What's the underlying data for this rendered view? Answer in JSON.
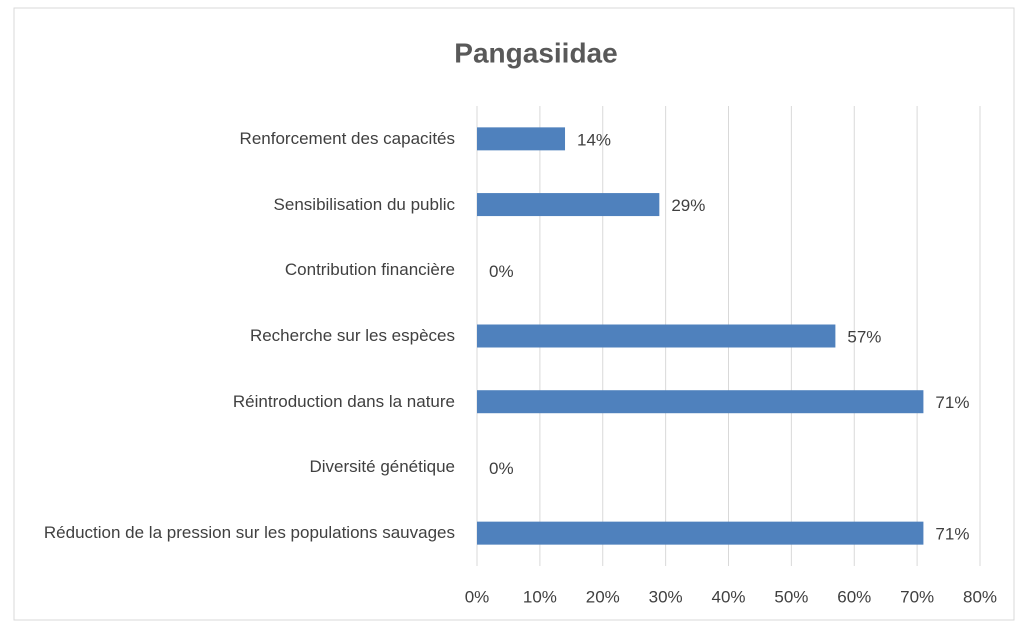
{
  "chart_data": {
    "type": "hbar",
    "title": "Pangasiidae",
    "categories": [
      "Renforcement des capacités",
      "Sensibilisation du public",
      "Contribution financière",
      "Recherche sur les espèces",
      "Réintroduction dans la nature",
      "Diversité génétique",
      "Réduction de la pression sur les populations sauvages"
    ],
    "values": [
      14,
      29,
      0,
      57,
      71,
      0,
      71
    ],
    "value_labels": [
      "14%",
      "29%",
      "0%",
      "57%",
      "71%",
      "0%",
      "71%"
    ],
    "color": "#4f81bd",
    "xlim": [
      0,
      80
    ],
    "xticks": [
      {
        "value": 0,
        "label": "0%"
      },
      {
        "value": 10,
        "label": "10%"
      },
      {
        "value": 20,
        "label": "20%"
      },
      {
        "value": 30,
        "label": "30%"
      },
      {
        "value": 40,
        "label": "40%"
      },
      {
        "value": 50,
        "label": "50%"
      },
      {
        "value": 60,
        "label": "60%"
      },
      {
        "value": 70,
        "label": "70%"
      },
      {
        "value": 80,
        "label": "80%"
      }
    ],
    "grid": true
  }
}
